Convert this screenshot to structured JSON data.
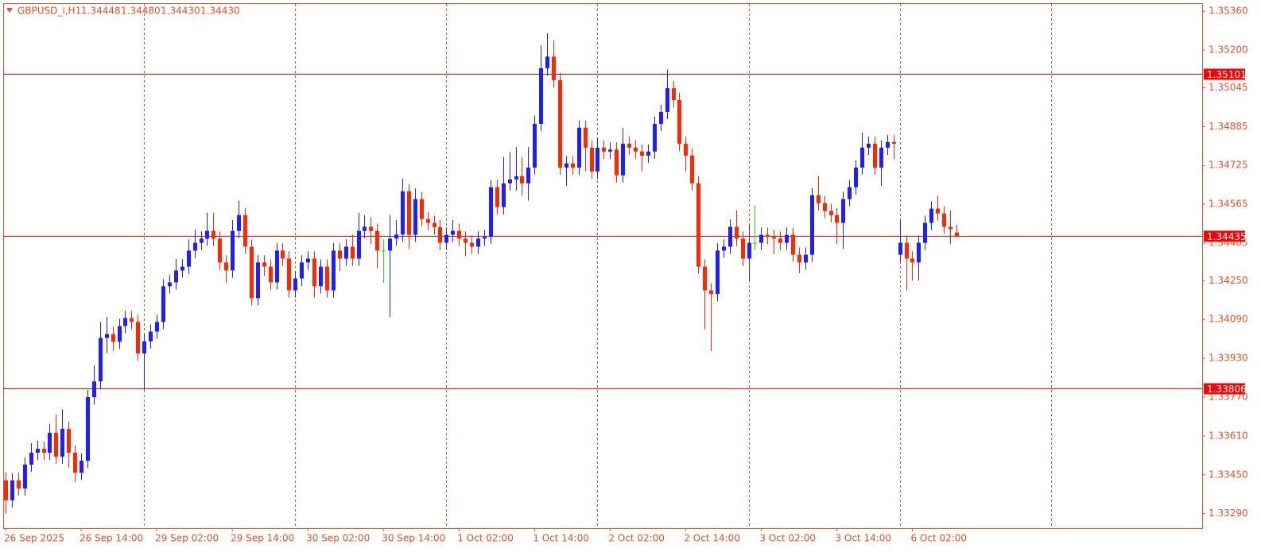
{
  "chart_data": {
    "type": "candlestick",
    "title": "GBPUSD_i,H1",
    "ohlc_text": [
      "1.34448",
      "1.34480",
      "1.34430",
      "1.34430"
    ],
    "categories": [
      "26 Sep 2025",
      null,
      null,
      null,
      null,
      null,
      null,
      null,
      null,
      null,
      null,
      null,
      "26 Sep 14:00",
      null,
      null,
      null,
      null,
      null,
      null,
      null,
      null,
      null,
      null,
      null,
      "29 Sep 02:00",
      null,
      null,
      null,
      null,
      null,
      null,
      null,
      null,
      null,
      null,
      null,
      "29 Sep 14:00",
      null,
      null,
      null,
      null,
      null,
      null,
      null,
      null,
      null,
      null,
      null,
      "30 Sep 02:00",
      null,
      null,
      null,
      null,
      null,
      null,
      null,
      null,
      null,
      null,
      null,
      "30 Sep 14:00",
      null,
      null,
      null,
      null,
      null,
      null,
      null,
      null,
      null,
      null,
      null,
      "1 Oct 02:00",
      null,
      null,
      null,
      null,
      null,
      null,
      null,
      null,
      null,
      null,
      null,
      "1 Oct 14:00",
      null,
      null,
      null,
      null,
      null,
      null,
      null,
      null,
      null,
      null,
      null,
      "2 Oct 02:00",
      null,
      null,
      null,
      null,
      null,
      null,
      null,
      null,
      null,
      null,
      null,
      "2 Oct 14:00",
      null,
      null,
      null,
      null,
      null,
      null,
      null,
      null,
      null,
      null,
      null,
      "3 Oct 02:00",
      null,
      null,
      null,
      null,
      null,
      null,
      null,
      null,
      null,
      null,
      null,
      "3 Oct 14:00",
      null,
      null,
      null,
      null,
      null,
      null,
      null,
      null,
      null,
      null,
      null,
      "6 Oct 02:00",
      null,
      null,
      null,
      null,
      null,
      null,
      null
    ],
    "open": [
      1.33427,
      1.33345,
      1.33427,
      1.33394,
      1.33492,
      1.33541,
      1.33557,
      1.33541,
      1.33623,
      1.33525,
      1.33639,
      1.33541,
      1.33459,
      1.33508,
      1.3377,
      1.33835,
      1.34014,
      1.3403,
      1.33998,
      1.34063,
      1.34096,
      1.3408,
      1.3395,
      1.34,
      1.3404,
      1.3408,
      1.34227,
      1.34243,
      1.34292,
      1.34308,
      1.34374,
      1.34406,
      1.34423,
      1.34455,
      1.34423,
      1.34325,
      1.34292,
      1.34455,
      1.3452,
      1.3439,
      1.34178,
      1.34325,
      1.34308,
      1.34243,
      1.34374,
      1.34341,
      1.3421,
      1.34259,
      1.34325,
      1.34341,
      1.34227,
      1.34308,
      1.3421,
      1.34374,
      1.34341,
      1.3439,
      1.34341,
      1.34455,
      1.34472,
      1.34455,
      1.34374,
      1.34374,
      1.34423,
      1.3444,
      1.34618,
      1.34439,
      1.34586,
      1.34504,
      1.34488,
      1.3447,
      1.34406,
      1.34439,
      1.34455,
      1.34423,
      1.34406,
      1.3439,
      1.34423,
      1.3443,
      1.34635,
      1.34553,
      1.34651,
      1.34667,
      1.3468,
      1.34651,
      1.34716,
      1.34896,
      1.35125,
      1.35173,
      1.35076,
      1.34716,
      1.34733,
      1.34716,
      1.3488,
      1.34798,
      1.347,
      1.34798,
      1.34782,
      1.3479,
      1.34684,
      1.34814,
      1.34798,
      1.34782,
      1.34765,
      1.34782,
      1.34896,
      1.34945,
      1.35043,
      1.34994,
      1.34814,
      1.34765,
      1.34651,
      1.34308,
      1.3421,
      1.34195,
      1.34374,
      1.3439,
      1.34472,
      1.34423,
      1.34341,
      1.34406,
      1.34406,
      1.34439,
      1.3443,
      1.34423,
      1.34406,
      1.34439,
      1.34357,
      1.34325,
      1.34357,
      1.34602,
      1.34569,
      1.34537,
      1.3452,
      1.34488,
      1.34586,
      1.34635,
      1.34716,
      1.34798,
      1.34814,
      1.34716,
      1.34798,
      1.34821,
      1.34357,
      1.34406,
      1.34341,
      1.34325,
      1.34406,
      1.34488,
      1.34547,
      1.34527,
      1.34472,
      1.34448
    ],
    "high": [
      1.3346,
      1.33457,
      1.3346,
      1.33522,
      1.3358,
      1.3359,
      1.33587,
      1.3366,
      1.337,
      1.3372,
      1.33669,
      1.33571,
      1.33538,
      1.338,
      1.339,
      1.3408,
      1.341,
      1.3406,
      1.34093,
      1.34126,
      1.34126,
      1.3411,
      1.3403,
      1.3407,
      1.3411,
      1.34257,
      1.34273,
      1.3434,
      1.34338,
      1.3442,
      1.3446,
      1.34453,
      1.3453,
      1.3453,
      1.34453,
      1.34355,
      1.345,
      1.3458,
      1.3455,
      1.3442,
      1.34355,
      1.34355,
      1.34338,
      1.34404,
      1.34404,
      1.34371,
      1.34289,
      1.34355,
      1.34371,
      1.34371,
      1.34338,
      1.34338,
      1.34404,
      1.34404,
      1.3442,
      1.3444,
      1.3453,
      1.3452,
      1.3451,
      1.34485,
      1.3442,
      1.3452,
      1.345,
      1.3467,
      1.34648,
      1.3463,
      1.34616,
      1.34534,
      1.34518,
      1.345,
      1.34469,
      1.345,
      1.34485,
      1.34453,
      1.34436,
      1.34453,
      1.3446,
      1.34665,
      1.34665,
      1.3476,
      1.3478,
      1.348,
      1.3476,
      1.348,
      1.3493,
      1.3522,
      1.3527,
      1.3524,
      1.35106,
      1.34763,
      1.34763,
      1.3491,
      1.3491,
      1.34828,
      1.3484,
      1.34828,
      1.3482,
      1.3482,
      1.3488,
      1.34844,
      1.34828,
      1.34812,
      1.34812,
      1.34926,
      1.34975,
      1.3512,
      1.35073,
      1.35024,
      1.34844,
      1.34795,
      1.34681,
      1.34338,
      1.3424,
      1.34404,
      1.3442,
      1.34502,
      1.3454,
      1.34453,
      1.3448,
      1.3456,
      1.34469,
      1.34469,
      1.3446,
      1.34453,
      1.34469,
      1.34469,
      1.34387,
      1.34387,
      1.34632,
      1.3468,
      1.34599,
      1.34567,
      1.3455,
      1.34616,
      1.34665,
      1.34746,
      1.3486,
      1.34844,
      1.34844,
      1.34828,
      1.34851,
      1.34851,
      1.345,
      1.34436,
      1.34371,
      1.34436,
      1.34518,
      1.34577,
      1.346,
      1.34557,
      1.3454,
      1.3448
    ],
    "low": [
      1.3329,
      1.33315,
      1.33364,
      1.33364,
      1.33462,
      1.33511,
      1.33511,
      1.33511,
      1.33495,
      1.33495,
      1.3348,
      1.3342,
      1.33429,
      1.33478,
      1.3374,
      1.33805,
      1.3395,
      1.3396,
      1.33968,
      1.34033,
      1.3405,
      1.3392,
      1.338,
      1.3397,
      1.3401,
      1.3405,
      1.34197,
      1.34213,
      1.34262,
      1.34278,
      1.34344,
      1.34376,
      1.34393,
      1.34393,
      1.34295,
      1.3424,
      1.34262,
      1.34425,
      1.3436,
      1.34148,
      1.34148,
      1.3427,
      1.34213,
      1.34213,
      1.34311,
      1.3418,
      1.3418,
      1.34229,
      1.34295,
      1.3418,
      1.34197,
      1.3418,
      1.3418,
      1.3429,
      1.34311,
      1.34311,
      1.34311,
      1.34425,
      1.344,
      1.343,
      1.3424,
      1.341,
      1.34393,
      1.3441,
      1.3438,
      1.34409,
      1.34474,
      1.34458,
      1.3444,
      1.34376,
      1.34376,
      1.34409,
      1.34393,
      1.3435,
      1.3436,
      1.3436,
      1.34393,
      1.344,
      1.34523,
      1.34523,
      1.34621,
      1.3462,
      1.346,
      1.3458,
      1.34686,
      1.34866,
      1.35095,
      1.35046,
      1.34686,
      1.3464,
      1.34686,
      1.34686,
      1.347,
      1.3467,
      1.3467,
      1.34752,
      1.34752,
      1.34654,
      1.34654,
      1.34768,
      1.34752,
      1.347,
      1.34735,
      1.34752,
      1.34866,
      1.34915,
      1.34964,
      1.34784,
      1.347,
      1.34621,
      1.34278,
      1.3405,
      1.3396,
      1.34165,
      1.34344,
      1.3436,
      1.34393,
      1.34311,
      1.3425,
      1.34376,
      1.34376,
      1.344,
      1.3436,
      1.34376,
      1.34376,
      1.34327,
      1.3428,
      1.34295,
      1.34327,
      1.34539,
      1.34507,
      1.3449,
      1.344,
      1.3438,
      1.34556,
      1.34605,
      1.34686,
      1.34768,
      1.34686,
      1.3464,
      1.34768,
      1.3475,
      1.34327,
      1.3421,
      1.3425,
      1.3425,
      1.34376,
      1.34458,
      1.34497,
      1.34442,
      1.344,
      1.3443
    ],
    "close": [
      1.33345,
      1.33427,
      1.33394,
      1.33492,
      1.33541,
      1.33557,
      1.33541,
      1.33623,
      1.33525,
      1.33639,
      1.33541,
      1.33459,
      1.33508,
      1.3377,
      1.33835,
      1.34014,
      1.3403,
      1.33998,
      1.34063,
      1.34096,
      1.3408,
      1.3395,
      1.34,
      1.3404,
      1.3408,
      1.34227,
      1.34243,
      1.34292,
      1.34308,
      1.34374,
      1.34406,
      1.34423,
      1.34455,
      1.34423,
      1.34325,
      1.34292,
      1.34455,
      1.3452,
      1.3439,
      1.34178,
      1.34325,
      1.34308,
      1.34243,
      1.34374,
      1.34341,
      1.3421,
      1.34259,
      1.34325,
      1.34341,
      1.34227,
      1.34308,
      1.3421,
      1.34374,
      1.34341,
      1.3439,
      1.34341,
      1.34455,
      1.34472,
      1.34455,
      1.34374,
      1.34374,
      1.34423,
      1.3444,
      1.34618,
      1.34439,
      1.34586,
      1.34504,
      1.34488,
      1.3447,
      1.34406,
      1.34439,
      1.34455,
      1.34423,
      1.34406,
      1.3439,
      1.34423,
      1.3443,
      1.34635,
      1.34553,
      1.34651,
      1.34667,
      1.3468,
      1.34651,
      1.34716,
      1.34896,
      1.35125,
      1.35173,
      1.35076,
      1.34716,
      1.34733,
      1.34716,
      1.3488,
      1.34798,
      1.347,
      1.34798,
      1.34782,
      1.3479,
      1.34684,
      1.34814,
      1.34798,
      1.34782,
      1.34765,
      1.34782,
      1.34896,
      1.34945,
      1.35043,
      1.34994,
      1.34814,
      1.34765,
      1.34651,
      1.34308,
      1.3421,
      1.34195,
      1.34374,
      1.3439,
      1.34472,
      1.34423,
      1.34341,
      1.34406,
      1.34406,
      1.34439,
      1.3443,
      1.34423,
      1.34406,
      1.34439,
      1.34357,
      1.34325,
      1.34357,
      1.34602,
      1.34569,
      1.34537,
      1.3452,
      1.34488,
      1.34586,
      1.34635,
      1.34716,
      1.34798,
      1.34814,
      1.34716,
      1.34798,
      1.34821,
      1.34814,
      1.34406,
      1.34341,
      1.34325,
      1.34406,
      1.34488,
      1.34547,
      1.34527,
      1.34472,
      1.34462,
      1.3443
    ],
    "up_color": "#1e1eff",
    "down_color": "#ff2800",
    "doji_color": "#22dd22",
    "hlines": [
      {
        "value": 1.35101,
        "color": "#ff0000"
      },
      {
        "value": 1.34435,
        "color": "#ff0000"
      },
      {
        "value": 1.33806,
        "color": "#ff0000"
      }
    ],
    "ylim": [
      1.3323,
      1.3539
    ],
    "yticks": [
      {
        "value": 1.3536,
        "label": "1.35360"
      },
      {
        "value": 1.352,
        "label": "1.35200"
      },
      1.35045,
      1.34885,
      1.34725,
      1.34565,
      1.34405,
      {
        "value": 1.3425,
        "label": "1.34250"
      },
      {
        "value": 1.3409,
        "label": "1.34090"
      },
      {
        "value": 1.3393,
        "label": "1.33930"
      },
      {
        "value": 1.3377,
        "label": "1.33770"
      },
      {
        "value": 1.3361,
        "label": "1.33610"
      },
      {
        "value": 1.3345,
        "label": "1.33450"
      },
      {
        "value": 1.3329,
        "label": "1.33290"
      }
    ],
    "grid": true
  }
}
